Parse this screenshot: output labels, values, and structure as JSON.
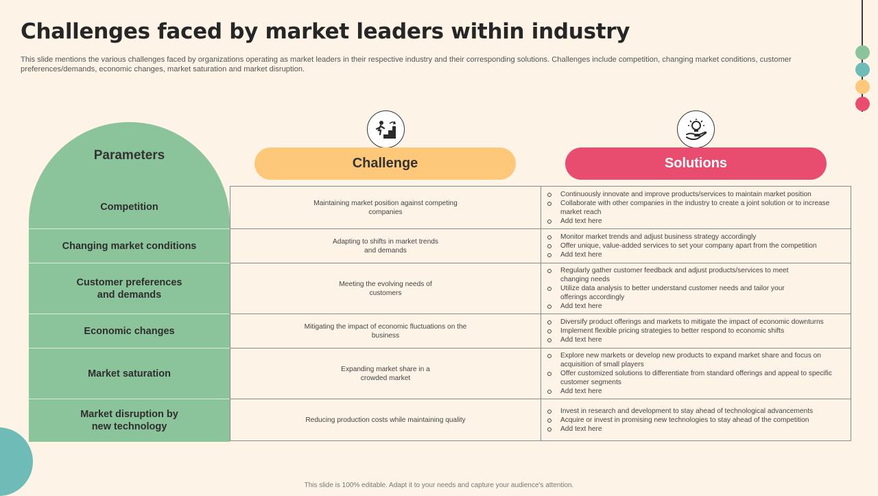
{
  "title": "Challenges faced by market leaders within industry",
  "subtitle": "This slide mentions the various challenges faced by organizations operating as market leaders in their respective industry and their corresponding solutions. Challenges include competition, changing market conditions, customer preferences/demands, economic changes, market saturation and market disruption.",
  "headers": {
    "parameters": "Parameters",
    "challenge": "Challenge",
    "solutions": "Solutions"
  },
  "icons": {
    "challenge": "person-climbing-stairs-icon",
    "solutions": "lightbulb-in-hand-icon"
  },
  "colors": {
    "background": "#fdf3e7",
    "parameters": "#8bc49a",
    "challenge": "#fdc879",
    "solutions": "#e84d6f",
    "accent_teal": "#6ebbb8"
  },
  "decor_dots": [
    "#8bc49a",
    "#6ebbb8",
    "#fdc879",
    "#e84d6f"
  ],
  "rows": [
    {
      "parameter": "Competition",
      "challenge": "Maintaining  market position against competing companies",
      "solutions": [
        "Continuously innovate and improve products/services to maintain market position",
        "Collaborate  with other companies in the industry to create a joint solution or to increase market reach",
        "Add text here"
      ]
    },
    {
      "parameter": "Changing market conditions",
      "challenge": "Adapting to shifts in market trends and demands",
      "solutions": [
        "Monitor  market trends and adjust business strategy accordingly",
        "Offer unique, value-added services to set your company apart from the competition",
        "Add text here"
      ]
    },
    {
      "parameter": "Customer preferences and demands",
      "challenge": "Meeting  the evolving needs of customers",
      "solutions": [
        "Regularly  gather customer feedback and adjust products/services to meet changing needs",
        "Utilize  data analysis to better understand customer needs and tailor your offerings accordingly",
        "Add text here"
      ]
    },
    {
      "parameter": "Economic changes",
      "challenge": "Mitigating  the impact of economic fluctuations on the business",
      "solutions": [
        "Diversify product offerings and markets to mitigate  the impact of economic downturns",
        "Implement   flexible pricing strategies to better respond to economic shifts",
        "Add text here"
      ]
    },
    {
      "parameter": "Market saturation",
      "challenge": "Expanding market share in a crowded market",
      "solutions": [
        "Explore new markets or develop new products to expand market share and focus on acquisition of small players",
        "Offer customized solutions to differentiate from standard offerings and appeal to specific customer segments",
        "Add text here"
      ]
    },
    {
      "parameter": "Market disruption by new technology",
      "challenge": "Reducing production costs while maintaining quality",
      "solutions": [
        "Invest  in research and development to stay ahead of technological advancements",
        "Acquire or invest in promising new technologies to stay ahead of the competition",
        "Add text here"
      ]
    }
  ],
  "footer": "This slide is 100% editable.  Adapt it to your needs and capture your audience's attention."
}
